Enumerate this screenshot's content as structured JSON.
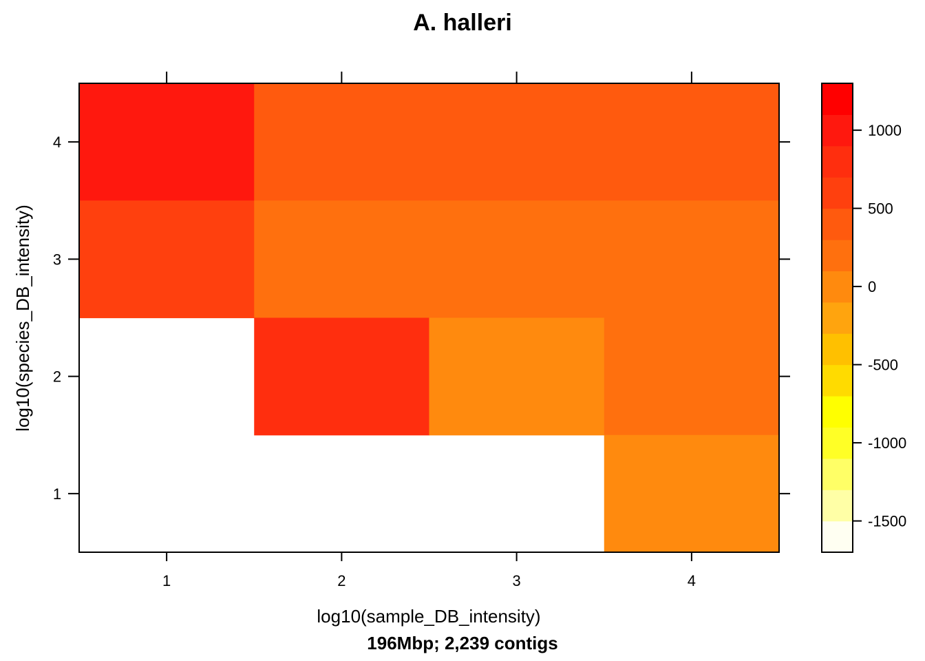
{
  "chart_data": {
    "type": "heatmap",
    "title": "A. halleri",
    "xlabel": "log10(sample_DB_intensity)",
    "ylabel": "log10(species_DB_intensity)",
    "subtitle": "196Mbp; 2,239 contigs",
    "x_ticks": [
      "1",
      "2",
      "3",
      "4"
    ],
    "y_ticks": [
      "1",
      "2",
      "3",
      "4"
    ],
    "cells": [
      {
        "x": 1,
        "y": 4,
        "value": 1050
      },
      {
        "x": 2,
        "y": 4,
        "value": 350
      },
      {
        "x": 3,
        "y": 4,
        "value": 350
      },
      {
        "x": 4,
        "y": 4,
        "value": 350
      },
      {
        "x": 1,
        "y": 3,
        "value": 650
      },
      {
        "x": 2,
        "y": 3,
        "value": 150
      },
      {
        "x": 3,
        "y": 3,
        "value": 150
      },
      {
        "x": 4,
        "y": 3,
        "value": 150
      },
      {
        "x": 1,
        "y": 2,
        "value": null
      },
      {
        "x": 2,
        "y": 2,
        "value": 850
      },
      {
        "x": 3,
        "y": 2,
        "value": -50
      },
      {
        "x": 4,
        "y": 2,
        "value": 150
      },
      {
        "x": 1,
        "y": 1,
        "value": null
      },
      {
        "x": 2,
        "y": 1,
        "value": null
      },
      {
        "x": 3,
        "y": 1,
        "value": null
      },
      {
        "x": 4,
        "y": 1,
        "value": -50
      }
    ],
    "colorbar": {
      "ticks": [
        "1000",
        "500",
        "0",
        "-500",
        "-1000",
        "-1500"
      ],
      "tick_values": [
        1000,
        500,
        0,
        -500,
        -1000,
        -1500
      ],
      "min": -1700,
      "max": 1300,
      "bands": [
        {
          "from": -1700,
          "to": -1500,
          "color": "#FFFFF2"
        },
        {
          "from": -1500,
          "to": -1300,
          "color": "#FFFFA6"
        },
        {
          "from": -1300,
          "to": -1100,
          "color": "#FFFF66"
        },
        {
          "from": -1100,
          "to": -900,
          "color": "#FFFF26"
        },
        {
          "from": -900,
          "to": -700,
          "color": "#FFFF00"
        },
        {
          "from": -700,
          "to": -500,
          "color": "#FFDB00"
        },
        {
          "from": -500,
          "to": -300,
          "color": "#FFC000"
        },
        {
          "from": -300,
          "to": -100,
          "color": "#FFA40E"
        },
        {
          "from": -100,
          "to": 100,
          "color": "#FF8A0E"
        },
        {
          "from": 100,
          "to": 300,
          "color": "#FF700E"
        },
        {
          "from": 300,
          "to": 500,
          "color": "#FF5A0E"
        },
        {
          "from": 500,
          "to": 700,
          "color": "#FF400E"
        },
        {
          "from": 700,
          "to": 900,
          "color": "#FF2E0E"
        },
        {
          "from": 900,
          "to": 1100,
          "color": "#FF180E"
        },
        {
          "from": 1100,
          "to": 1300,
          "color": "#FF0000"
        }
      ]
    }
  }
}
